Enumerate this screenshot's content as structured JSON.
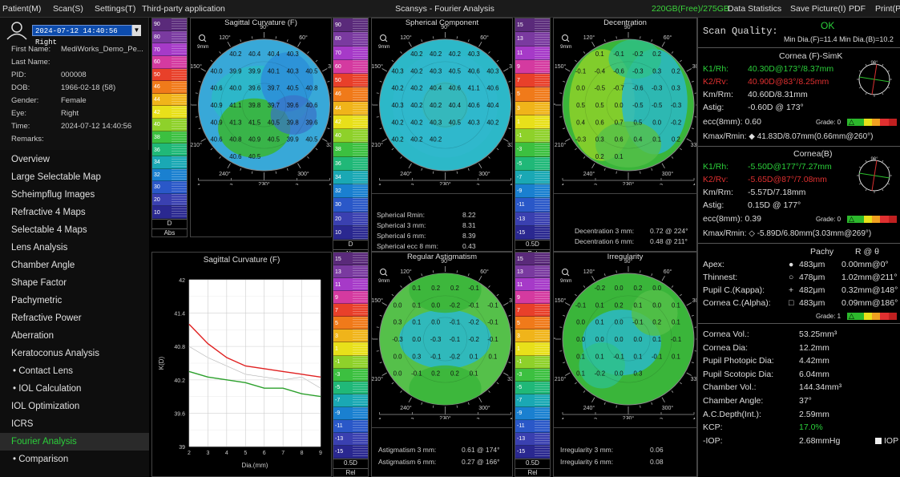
{
  "menu": {
    "items": [
      "Patient(M)",
      "Scan(S)",
      "Settings(T)",
      "Third-party application"
    ],
    "title": "Scansys - Fourier Analysis",
    "disk": "220GB(Free)/275GB",
    "right_items": [
      "Data Statistics",
      "Save Picture(I)",
      "PDF",
      "Print(P"
    ]
  },
  "patient": {
    "date_select": "2024-07-12 14:40:56 Right",
    "fields": [
      {
        "label": "First Name:",
        "value": "MediWorks_Demo_Pe..."
      },
      {
        "label": "Last Name:",
        "value": ""
      },
      {
        "label": "PID:",
        "value": "000008"
      },
      {
        "label": "DOB:",
        "value": "1966-02-18  (58)"
      },
      {
        "label": "Gender:",
        "value": "Female"
      },
      {
        "label": "Eye:",
        "value": "Right"
      },
      {
        "label": "Time:",
        "value": "2024-07-12 14:40:56"
      },
      {
        "label": "Remarks:",
        "value": ""
      }
    ]
  },
  "nav": [
    {
      "label": "Overview"
    },
    {
      "label": "Large Selectable Map"
    },
    {
      "label": "Scheimpflug Images"
    },
    {
      "label": "Refractive 4 Maps"
    },
    {
      "label": "Selectable 4 Maps"
    },
    {
      "label": "Lens Analysis"
    },
    {
      "label": "Chamber Angle"
    },
    {
      "label": "Shape Factor"
    },
    {
      "label": "Pachymetric"
    },
    {
      "label": "Refractive Power"
    },
    {
      "label": "Aberration"
    },
    {
      "label": "Keratoconus Analysis"
    },
    {
      "label": "• Contact Lens",
      "sub": true
    },
    {
      "label": "• IOL Calculation",
      "sub": true
    },
    {
      "label": "IOL Optimization"
    },
    {
      "label": "ICRS"
    },
    {
      "label": "Fourier Analysis",
      "active": true
    },
    {
      "label": "• Comparison",
      "sub": true
    }
  ],
  "scale1": {
    "labels": [
      "90",
      "80",
      "70",
      "60",
      "50",
      "46",
      "44",
      "42",
      "40",
      "38",
      "36",
      "34",
      "32",
      "30",
      "20",
      "10"
    ],
    "unit": "D",
    "mode": "Abs"
  },
  "scale2": {
    "labels": [
      "90",
      "80",
      "70",
      "60",
      "50",
      "46",
      "44",
      "42",
      "40",
      "38",
      "36",
      "34",
      "32",
      "30",
      "20",
      "10"
    ],
    "unit": "D",
    "mode": "Abs"
  },
  "scale3": {
    "labels": [
      "15",
      "13",
      "11",
      "9",
      "7",
      "5",
      "3",
      "1",
      "-1",
      "-3",
      "-5",
      "-7",
      "-9",
      "-11",
      "-13",
      "-15"
    ],
    "unit": "0.5D",
    "mode": "Rel"
  },
  "scale4": {
    "labels": [
      "15",
      "13",
      "11",
      "9",
      "7",
      "5",
      "3",
      "1",
      "-1",
      "-3",
      "-5",
      "-7",
      "-9",
      "-11",
      "-13",
      "-15"
    ],
    "unit": "0.5D",
    "mode": "Rel"
  },
  "scale5": {
    "labels": [
      "15",
      "13",
      "11",
      "9",
      "7",
      "5",
      "3",
      "1",
      "-1",
      "-3",
      "-5",
      "-7",
      "-9",
      "-11",
      "-13",
      "-15"
    ],
    "unit": "0.5D",
    "mode": "Rel"
  },
  "scale_colors": [
    "#5a2a7a",
    "#7a3aa0",
    "#a63ac8",
    "#d43aa0",
    "#e8402a",
    "#f07a1a",
    "#f0b41a",
    "#e8e01a",
    "#8ed12a",
    "#3cc040",
    "#20b878",
    "#1aa8b4",
    "#1a80d0",
    "#2a58c8",
    "#3a40b0",
    "#2a2890"
  ],
  "maps": {
    "sag": {
      "title": "Sagittal Curvature (F)",
      "values": [
        "40.2",
        "40.4",
        "40.4",
        "40.3",
        "40.0",
        "39.9",
        "39.9",
        "40.1",
        "40.3",
        "40.5",
        "40.6",
        "40.0",
        "39.6",
        "39.7",
        "40.5",
        "40.8",
        "40.9",
        "41.1",
        "39.8",
        "39.7",
        "39.6",
        "40.6",
        "40.9",
        "41.3",
        "41.5",
        "40.5",
        "39.8",
        "39.6",
        "40.6",
        "40.8",
        "40.9",
        "40.5",
        "39.9",
        "40.5",
        "40.6",
        "40.5"
      ]
    },
    "sph": {
      "title": "Spherical Component",
      "values": [
        "40.2",
        "40.2",
        "40.2",
        "40.3",
        "40.3",
        "40.2",
        "40.3",
        "40.5",
        "40.6",
        "40.3",
        "40.2",
        "40.2",
        "40.4",
        "40.6",
        "41.1",
        "40.6",
        "40.3",
        "40.2",
        "40.2",
        "40.4",
        "40.6",
        "40.4",
        "40.2",
        "40.2",
        "40.3",
        "40.5",
        "40.3",
        "40.2",
        "40.2",
        "40.2",
        "40.2"
      ],
      "stats": [
        {
          "label": "Spherical Rmin:",
          "value": "8.22"
        },
        {
          "label": "Spherical 3 mm:",
          "value": "8.31"
        },
        {
          "label": "Spherical 6 mm:",
          "value": "8.39"
        },
        {
          "label": "Spherical ecc 8 mm:",
          "value": "0.43"
        }
      ]
    },
    "dec": {
      "title": "Decentration",
      "values": [
        "0.1",
        "-0.1",
        "-0.2",
        "0.2",
        "-0.1",
        "-0.4",
        "-0.6",
        "-0.3",
        "0.3",
        "0.2",
        "0.0",
        "-0.5",
        "-0.7",
        "-0.6",
        "-0.3",
        "0.3",
        "0.5",
        "0.5",
        "0.0",
        "-0.5",
        "-0.5",
        "-0.3",
        "0.4",
        "0.6",
        "0.7",
        "0.5",
        "0.0",
        "-0.2",
        "-0.3",
        "0.3",
        "0.6",
        "0.4",
        "0.1",
        "0.2",
        "0.2",
        "0.1"
      ],
      "stats": [
        {
          "label": "Decentration 3 mm:",
          "value": "0.72 @ 224°"
        },
        {
          "label": "Decentration 6 mm:",
          "value": "0.48 @ 211°"
        }
      ]
    },
    "ast": {
      "title": "Regular Astigmatism",
      "values": [
        "0.1",
        "0.2",
        "0.2",
        "-0.1",
        "0.0",
        "0.1",
        "0.0",
        "-0.2",
        "-0.1",
        "-0.1",
        "0.3",
        "0.1",
        "0.0",
        "-0.1",
        "-0.2",
        "-0.1",
        "-0.3",
        "0.0",
        "-0.3",
        "-0.1",
        "-0.2",
        "-0.1",
        "0.0",
        "0.3",
        "-0.1",
        "-0.2",
        "0.1",
        "0.1",
        "0.0",
        "-0.1",
        "0.2",
        "0.2",
        "0.1"
      ],
      "stats": [
        {
          "label": "Astigmatism 3 mm:",
          "value": "0.61 @ 174°"
        },
        {
          "label": "Astigmatism 6 mm:",
          "value": "0.27 @ 166°"
        }
      ]
    },
    "irr": {
      "title": "Irregularity",
      "values": [
        "-0.2",
        "0.0",
        "0.2",
        "0.0",
        "-0.1",
        "0.1",
        "0.2",
        "0.1",
        "0.0",
        "0.1",
        "0.0",
        "0.1",
        "0.0",
        "-0.1",
        "0.2",
        "0.1",
        "0.0",
        "0.0",
        "0.0",
        "0.0",
        "0.1",
        "-0.1",
        "0.1",
        "0.1",
        "-0.1",
        "0.1",
        "-0.1",
        "0.1",
        "0.1",
        "-0.2",
        "0.0",
        "0.3"
      ],
      "stats": [
        {
          "label": "Irregularity 3 mm:",
          "value": "0.06"
        },
        {
          "label": "Irregularity 6 mm:",
          "value": "0.08"
        }
      ]
    }
  },
  "map_common": {
    "mm": "9mm",
    "angles": [
      "90°",
      "60°",
      "30°",
      "0°",
      "330°",
      "300°",
      "270°",
      "240°",
      "210°",
      "180°",
      "150°",
      "120°"
    ],
    "xticks": [
      "4",
      "2",
      "0",
      "2",
      "4"
    ]
  },
  "graph": {
    "title": "Sagittal Curvature (F)",
    "ylabel": "K(D)",
    "xlabel": "Dia.(mm)",
    "yticks": [
      "42",
      "41.4",
      "40.8",
      "40.2",
      "39.6",
      "39"
    ],
    "xticks": [
      "2",
      "3",
      "4",
      "5",
      "6",
      "7",
      "8",
      "9"
    ]
  },
  "chart_data": {
    "type": "line",
    "title": "Sagittal Curvature (F)",
    "xlabel": "Dia.(mm)",
    "ylabel": "K(D)",
    "xlim": [
      2,
      9
    ],
    "ylim": [
      39,
      42
    ],
    "x": [
      2,
      3,
      4,
      5,
      6,
      7,
      8,
      9
    ],
    "series": [
      {
        "color": "#e02020",
        "values": [
          41.2,
          40.85,
          40.6,
          40.45,
          40.4,
          40.35,
          40.3,
          40.25
        ]
      },
      {
        "color": "#ffffff",
        "values": [
          40.8,
          40.6,
          40.45,
          40.3,
          40.25,
          40.2,
          40.25,
          40.05
        ]
      },
      {
        "color": "#2ca02c",
        "values": [
          40.35,
          40.25,
          40.2,
          40.15,
          40.05,
          40.05,
          39.95,
          39.9
        ]
      }
    ]
  },
  "right": {
    "scan_quality_label": "Scan Quality:",
    "scan_quality_value": "OK",
    "min_dia": "Min Dia.(F)=11.4  Min Dia.(B)=10.2",
    "front": {
      "title": "Cornea (F)-SimK",
      "k1_label": "K1/Rh:",
      "k1": "40.30D@173°/8.37mm",
      "k2_label": "K2/Rv:",
      "k2": "40.90D@83°/8.25mm",
      "km_label": "Km/Rm:",
      "km": "40.60D/8.31mm",
      "astig_label": "Astig:",
      "astig": "-0.60D @ 173°",
      "ecc": "ecc(8mm): 0.60",
      "grade": "Grade: 0",
      "kmax": "Kmax/Rmin: ◆ 41.83D/8.07mm(0.66mm@260°)"
    },
    "back": {
      "title": "Cornea(B)",
      "k1_label": "K1/Rh:",
      "k1": "-5.50D@177°/7.27mm",
      "k2_label": "K2/Rv:",
      "k2": "-5.65D@87°/7.08mm",
      "km_label": "Km/Rm:",
      "km": "-5.57D/7.18mm",
      "astig_label": "Astig:",
      "astig": "0.15D @ 177°",
      "ecc": "ecc(8mm): 0.39",
      "grade": "Grade: 0",
      "kmax": "Kmax/Rmin: ◇ -5.89D/6.80mm(3.03mm@269°)"
    },
    "pachy": {
      "h1": "Pachy",
      "h2": "R @ θ",
      "rows": [
        {
          "label": "Apex:",
          "sym": "●",
          "pachy": "483μm",
          "r": "0.00mm@0°"
        },
        {
          "label": "Thinnest:",
          "sym": "○",
          "pachy": "478μm",
          "r": "1.02mm@211°"
        },
        {
          "label": "Pupil C.(Kappa):",
          "sym": "+",
          "pachy": "482μm",
          "r": "0.32mm@148°"
        },
        {
          "label": "Cornea C.(Alpha):",
          "sym": "□",
          "pachy": "483μm",
          "r": "0.09mm@186°"
        }
      ],
      "grade": "Grade: 1"
    },
    "metrics": [
      {
        "label": "Cornea Vol.:",
        "value": "53.25mm³"
      },
      {
        "label": "Cornea Dia:",
        "value": "12.2mm"
      },
      {
        "label": "Pupil Photopic Dia:",
        "value": "4.42mm"
      },
      {
        "label": "Pupil Scotopic Dia:",
        "value": "6.04mm"
      },
      {
        "label": "Chamber Vol.:",
        "value": "144.34mm³"
      },
      {
        "label": "Chamber Angle:",
        "value": "37°"
      },
      {
        "label": "A.C.Depth(Int.):",
        "value": "2.59mm"
      },
      {
        "label": "KCP:",
        "value": "17.0%",
        "green": true
      },
      {
        "label": "-IOP:",
        "value": "2.68mmHg"
      }
    ],
    "iop_label": "IOP"
  }
}
